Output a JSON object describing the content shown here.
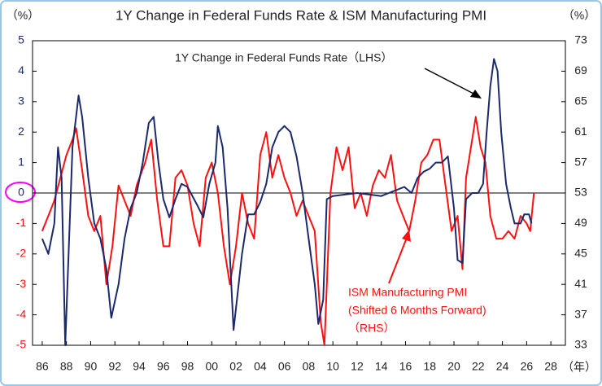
{
  "chart_data": {
    "type": "line",
    "title": "1Y Change in Federal Funds Rate & ISM Manufacturing PMI",
    "y_unit": "（%）",
    "y2_unit": "（%）",
    "x_unit": "（年）",
    "annotations": [
      "(Shifted 6 Months Forward)",
      "（RHS）"
    ],
    "xlim": [
      1985.2,
      2029.2
    ],
    "xticks": [
      {
        "value": 1986,
        "label": "86"
      },
      {
        "value": 1988,
        "label": "88"
      },
      {
        "value": 1990,
        "label": "90"
      },
      {
        "value": 1992,
        "label": "92"
      },
      {
        "value": 1994,
        "label": "94"
      },
      {
        "value": 1996,
        "label": "96"
      },
      {
        "value": 1998,
        "label": "98"
      },
      {
        "value": 2000,
        "label": "00"
      },
      {
        "value": 2002,
        "label": "02"
      },
      {
        "value": 2004,
        "label": "04"
      },
      {
        "value": 2006,
        "label": "06"
      },
      {
        "value": 2008,
        "label": "08"
      },
      {
        "value": 2010,
        "label": "10"
      },
      {
        "value": 2012,
        "label": "12"
      },
      {
        "value": 2014,
        "label": "14"
      },
      {
        "value": 2016,
        "label": "16"
      },
      {
        "value": 2018,
        "label": "18"
      },
      {
        "value": 2020,
        "label": "20"
      },
      {
        "value": 2022,
        "label": "22"
      },
      {
        "value": 2024,
        "label": "24"
      },
      {
        "value": 2026,
        "label": "26"
      },
      {
        "value": 2028,
        "label": "28"
      }
    ],
    "ylim": [
      -5,
      5
    ],
    "yticks": [
      5,
      4,
      3,
      2,
      1,
      0,
      -1,
      -2,
      -3,
      -4,
      -5
    ],
    "y2lim": [
      33,
      73
    ],
    "y2ticks": [
      73,
      69,
      65,
      61,
      57,
      53,
      49,
      45,
      41,
      37,
      33
    ],
    "zero_line": true,
    "series": [
      {
        "name": "1Y Change in Federal Funds Rate（LHS）",
        "color": "#1a2a6c",
        "axis": "y",
        "x": [
          1986.0,
          1986.5,
          1987.0,
          1987.3,
          1987.6,
          1987.9,
          1988.5,
          1989.0,
          1989.3,
          1989.8,
          1990.3,
          1990.8,
          1991.3,
          1991.7,
          1992.3,
          1992.8,
          1993.3,
          1993.8,
          1994.3,
          1994.8,
          1995.2,
          1995.6,
          1996.0,
          1996.5,
          1997.0,
          1997.5,
          1998.0,
          1998.8,
          1999.3,
          1999.8,
          2000.3,
          2000.5,
          2000.9,
          2001.3,
          2001.8,
          2002.5,
          2003.0,
          2003.5,
          2004.0,
          2004.5,
          2005.0,
          2005.5,
          2006.0,
          2006.5,
          2007.0,
          2007.5,
          2008.0,
          2008.5,
          2008.8,
          2009.2,
          2009.5,
          2010.0,
          2012.0,
          2014.0,
          2015.9,
          2016.5,
          2017.0,
          2017.5,
          2018.0,
          2018.5,
          2019.0,
          2019.5,
          2020.0,
          2020.3,
          2020.7,
          2021.0,
          2021.5,
          2022.0,
          2022.4,
          2022.7,
          2023.0,
          2023.3,
          2023.6,
          2023.9,
          2024.3,
          2024.7,
          2025.0,
          2025.5,
          2025.8,
          2026.2,
          2026.4
        ],
        "values": [
          -1.5,
          -2.0,
          -1.0,
          1.5,
          0.5,
          -5.0,
          1.5,
          3.2,
          2.5,
          0.5,
          -1.0,
          -1.5,
          -2.5,
          -4.1,
          -3.0,
          -1.5,
          -0.5,
          0,
          1.0,
          2.3,
          2.5,
          1.0,
          -0.2,
          -0.8,
          -0.2,
          0.3,
          0.2,
          -0.4,
          -0.8,
          0.3,
          1.0,
          2.2,
          1.5,
          -0.5,
          -4.5,
          -2.0,
          -0.7,
          -0.7,
          -0.3,
          0.3,
          1.5,
          2.0,
          2.2,
          2.0,
          1.2,
          0,
          -1.5,
          -3.0,
          -4.3,
          -3.5,
          -0.2,
          -0.1,
          0,
          -0.1,
          0.2,
          0,
          0.5,
          0.7,
          0.8,
          1.0,
          1.0,
          1.2,
          -0.5,
          -2.2,
          -2.3,
          -0.2,
          0,
          0,
          0.3,
          2.0,
          3.5,
          4.4,
          4.0,
          2.0,
          0.3,
          -0.5,
          -1.0,
          -1.0,
          -0.7,
          -0.7,
          -1.0
        ]
      },
      {
        "name": "ISM Manufacturing PMI",
        "color": "#ff1010",
        "axis": "y2",
        "x": [
          1986.0,
          1986.5,
          1987.0,
          1987.5,
          1988.0,
          1988.5,
          1988.8,
          1989.3,
          1989.8,
          1990.3,
          1990.8,
          1991.3,
          1991.8,
          1992.3,
          1992.8,
          1993.3,
          1993.8,
          1994.5,
          1995.0,
          1995.5,
          1996.0,
          1996.5,
          1997.0,
          1997.5,
          1998.0,
          1998.5,
          1999.0,
          1999.5,
          2000.0,
          2000.5,
          2001.0,
          2001.5,
          2002.0,
          2002.5,
          2003.0,
          2003.5,
          2004.0,
          2004.5,
          2005.0,
          2005.5,
          2006.0,
          2006.5,
          2007.0,
          2007.5,
          2008.0,
          2008.5,
          2009.0,
          2009.3,
          2009.8,
          2010.3,
          2010.8,
          2011.3,
          2011.8,
          2012.3,
          2012.8,
          2013.3,
          2013.8,
          2014.3,
          2014.8,
          2015.3,
          2015.8,
          2016.3,
          2016.8,
          2017.3,
          2017.8,
          2018.3,
          2018.8,
          2019.3,
          2019.8,
          2020.3,
          2020.7,
          2021.0,
          2021.5,
          2021.8,
          2022.2,
          2022.6,
          2023.0,
          2023.5,
          2024.0,
          2024.5,
          2025.0,
          2025.5,
          2026.0,
          2026.3,
          2026.6
        ],
        "values": [
          48,
          50,
          52,
          55,
          58,
          60,
          61.5,
          56,
          50,
          48,
          50,
          41,
          46,
          54,
          52,
          50,
          54,
          57,
          60,
          52,
          46,
          46,
          55,
          56,
          54,
          49,
          46,
          55,
          57,
          53,
          46,
          41,
          46,
          53,
          49,
          47,
          58,
          61,
          55,
          58,
          55,
          53,
          50,
          52,
          50,
          48,
          36,
          33,
          53,
          59,
          56,
          59,
          51,
          53,
          50,
          54,
          56,
          55,
          58,
          52,
          50,
          48,
          52,
          57,
          58,
          60,
          60,
          54,
          48,
          50,
          43,
          55,
          60,
          63,
          59,
          57,
          50,
          47,
          47,
          48,
          47,
          50,
          49,
          48,
          53
        ]
      }
    ]
  }
}
